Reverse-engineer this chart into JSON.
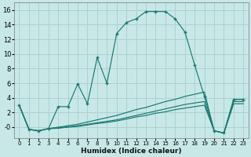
{
  "xlabel": "Humidex (Indice chaleur)",
  "bg_color": "#c8e8e8",
  "grid_color": "#aed0d0",
  "line_color": "#1a7870",
  "xlim": [
    -0.5,
    23.5
  ],
  "ylim": [
    -1.5,
    17.0
  ],
  "xticks": [
    0,
    1,
    2,
    3,
    4,
    5,
    6,
    7,
    8,
    9,
    10,
    11,
    12,
    13,
    14,
    15,
    16,
    17,
    18,
    19,
    20,
    21,
    22,
    23
  ],
  "ytick_vals": [
    0,
    2,
    4,
    6,
    8,
    10,
    12,
    14,
    16
  ],
  "ytick_labels": [
    "-0",
    "2",
    "4",
    "6",
    "8",
    "10",
    "12",
    "14",
    "16"
  ],
  "main_x": [
    0,
    1,
    2,
    3,
    4,
    5,
    6,
    7,
    8,
    9,
    10,
    11,
    12,
    13,
    14,
    15,
    16,
    17,
    18,
    19,
    20,
    21,
    22,
    23
  ],
  "main_y": [
    3.0,
    -0.3,
    -0.5,
    -0.2,
    2.8,
    2.8,
    5.9,
    3.2,
    9.5,
    6.0,
    12.8,
    14.3,
    14.8,
    15.8,
    15.8,
    15.8,
    14.8,
    13.0,
    8.5,
    4.2,
    -0.5,
    -0.8,
    3.8,
    3.8
  ],
  "flat1_x": [
    0,
    1,
    2,
    3,
    4,
    5,
    6,
    7,
    8,
    9,
    10,
    11,
    12,
    13,
    14,
    15,
    16,
    17,
    18,
    19,
    20,
    21,
    22,
    23
  ],
  "flat1_y": [
    3.0,
    -0.3,
    -0.5,
    -0.2,
    0.0,
    0.2,
    0.4,
    0.7,
    1.0,
    1.3,
    1.6,
    2.0,
    2.4,
    2.7,
    3.1,
    3.5,
    3.8,
    4.2,
    4.5,
    4.8,
    -0.5,
    -0.8,
    3.8,
    3.8
  ],
  "flat2_x": [
    0,
    1,
    2,
    3,
    4,
    5,
    6,
    7,
    8,
    9,
    10,
    11,
    12,
    13,
    14,
    15,
    16,
    17,
    18,
    19,
    20,
    21,
    22,
    23
  ],
  "flat2_y": [
    3.0,
    -0.3,
    -0.5,
    -0.2,
    -0.1,
    0.05,
    0.2,
    0.4,
    0.6,
    0.8,
    1.0,
    1.3,
    1.6,
    1.9,
    2.2,
    2.5,
    2.8,
    3.1,
    3.3,
    3.5,
    -0.5,
    -0.8,
    3.5,
    3.5
  ],
  "flat3_x": [
    0,
    1,
    2,
    3,
    4,
    5,
    6,
    7,
    8,
    9,
    10,
    11,
    12,
    13,
    14,
    15,
    16,
    17,
    18,
    19,
    20,
    21,
    22,
    23
  ],
  "flat3_y": [
    3.0,
    -0.3,
    -0.5,
    -0.2,
    -0.15,
    0.0,
    0.1,
    0.3,
    0.5,
    0.65,
    0.85,
    1.1,
    1.4,
    1.6,
    1.9,
    2.1,
    2.4,
    2.6,
    2.8,
    3.0,
    -0.5,
    -0.8,
    3.2,
    3.2
  ]
}
